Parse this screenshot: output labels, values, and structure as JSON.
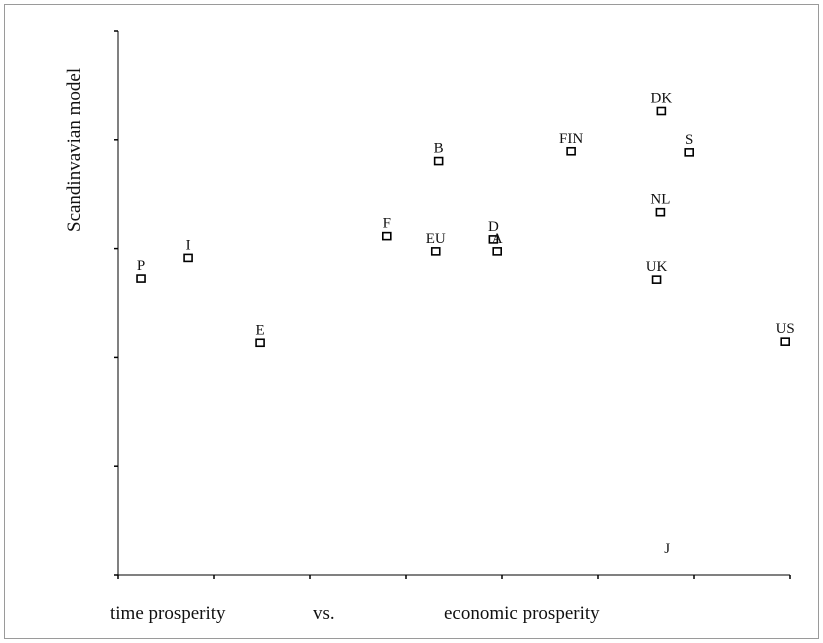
{
  "chart_data": {
    "type": "scatter",
    "title": "",
    "ylabel": "Scandinvavian model",
    "xlabel_parts": [
      "time prosperity",
      "vs.",
      "economic prosperity"
    ],
    "xlim": [
      0,
      7
    ],
    "ylim": [
      0,
      5
    ],
    "x_ticks": [
      0,
      1,
      2,
      3,
      4,
      5,
      6,
      7
    ],
    "y_ticks": [
      0,
      1,
      2,
      3,
      4,
      5
    ],
    "grid": false,
    "legend": "none",
    "marker_color": "#000000",
    "points": [
      {
        "label": "P",
        "x": 0.24,
        "y": 2.72
      },
      {
        "label": "I",
        "x": 0.73,
        "y": 2.91
      },
      {
        "label": "E",
        "x": 1.48,
        "y": 2.13
      },
      {
        "label": "F",
        "x": 2.8,
        "y": 3.11
      },
      {
        "label": "EU",
        "x": 3.31,
        "y": 2.97
      },
      {
        "label": "B",
        "x": 3.34,
        "y": 3.8
      },
      {
        "label": "D",
        "x": 3.91,
        "y": 3.08
      },
      {
        "label": "A",
        "x": 3.95,
        "y": 2.97
      },
      {
        "label": "FIN",
        "x": 4.72,
        "y": 3.89
      },
      {
        "label": "DK",
        "x": 5.66,
        "y": 4.26
      },
      {
        "label": "S",
        "x": 5.95,
        "y": 3.88
      },
      {
        "label": "NL",
        "x": 5.65,
        "y": 3.33
      },
      {
        "label": "UK",
        "x": 5.61,
        "y": 2.71
      },
      {
        "label": "US",
        "x": 6.95,
        "y": 2.14
      },
      {
        "label": "J",
        "x": 5.72,
        "y": 0.12
      }
    ]
  }
}
